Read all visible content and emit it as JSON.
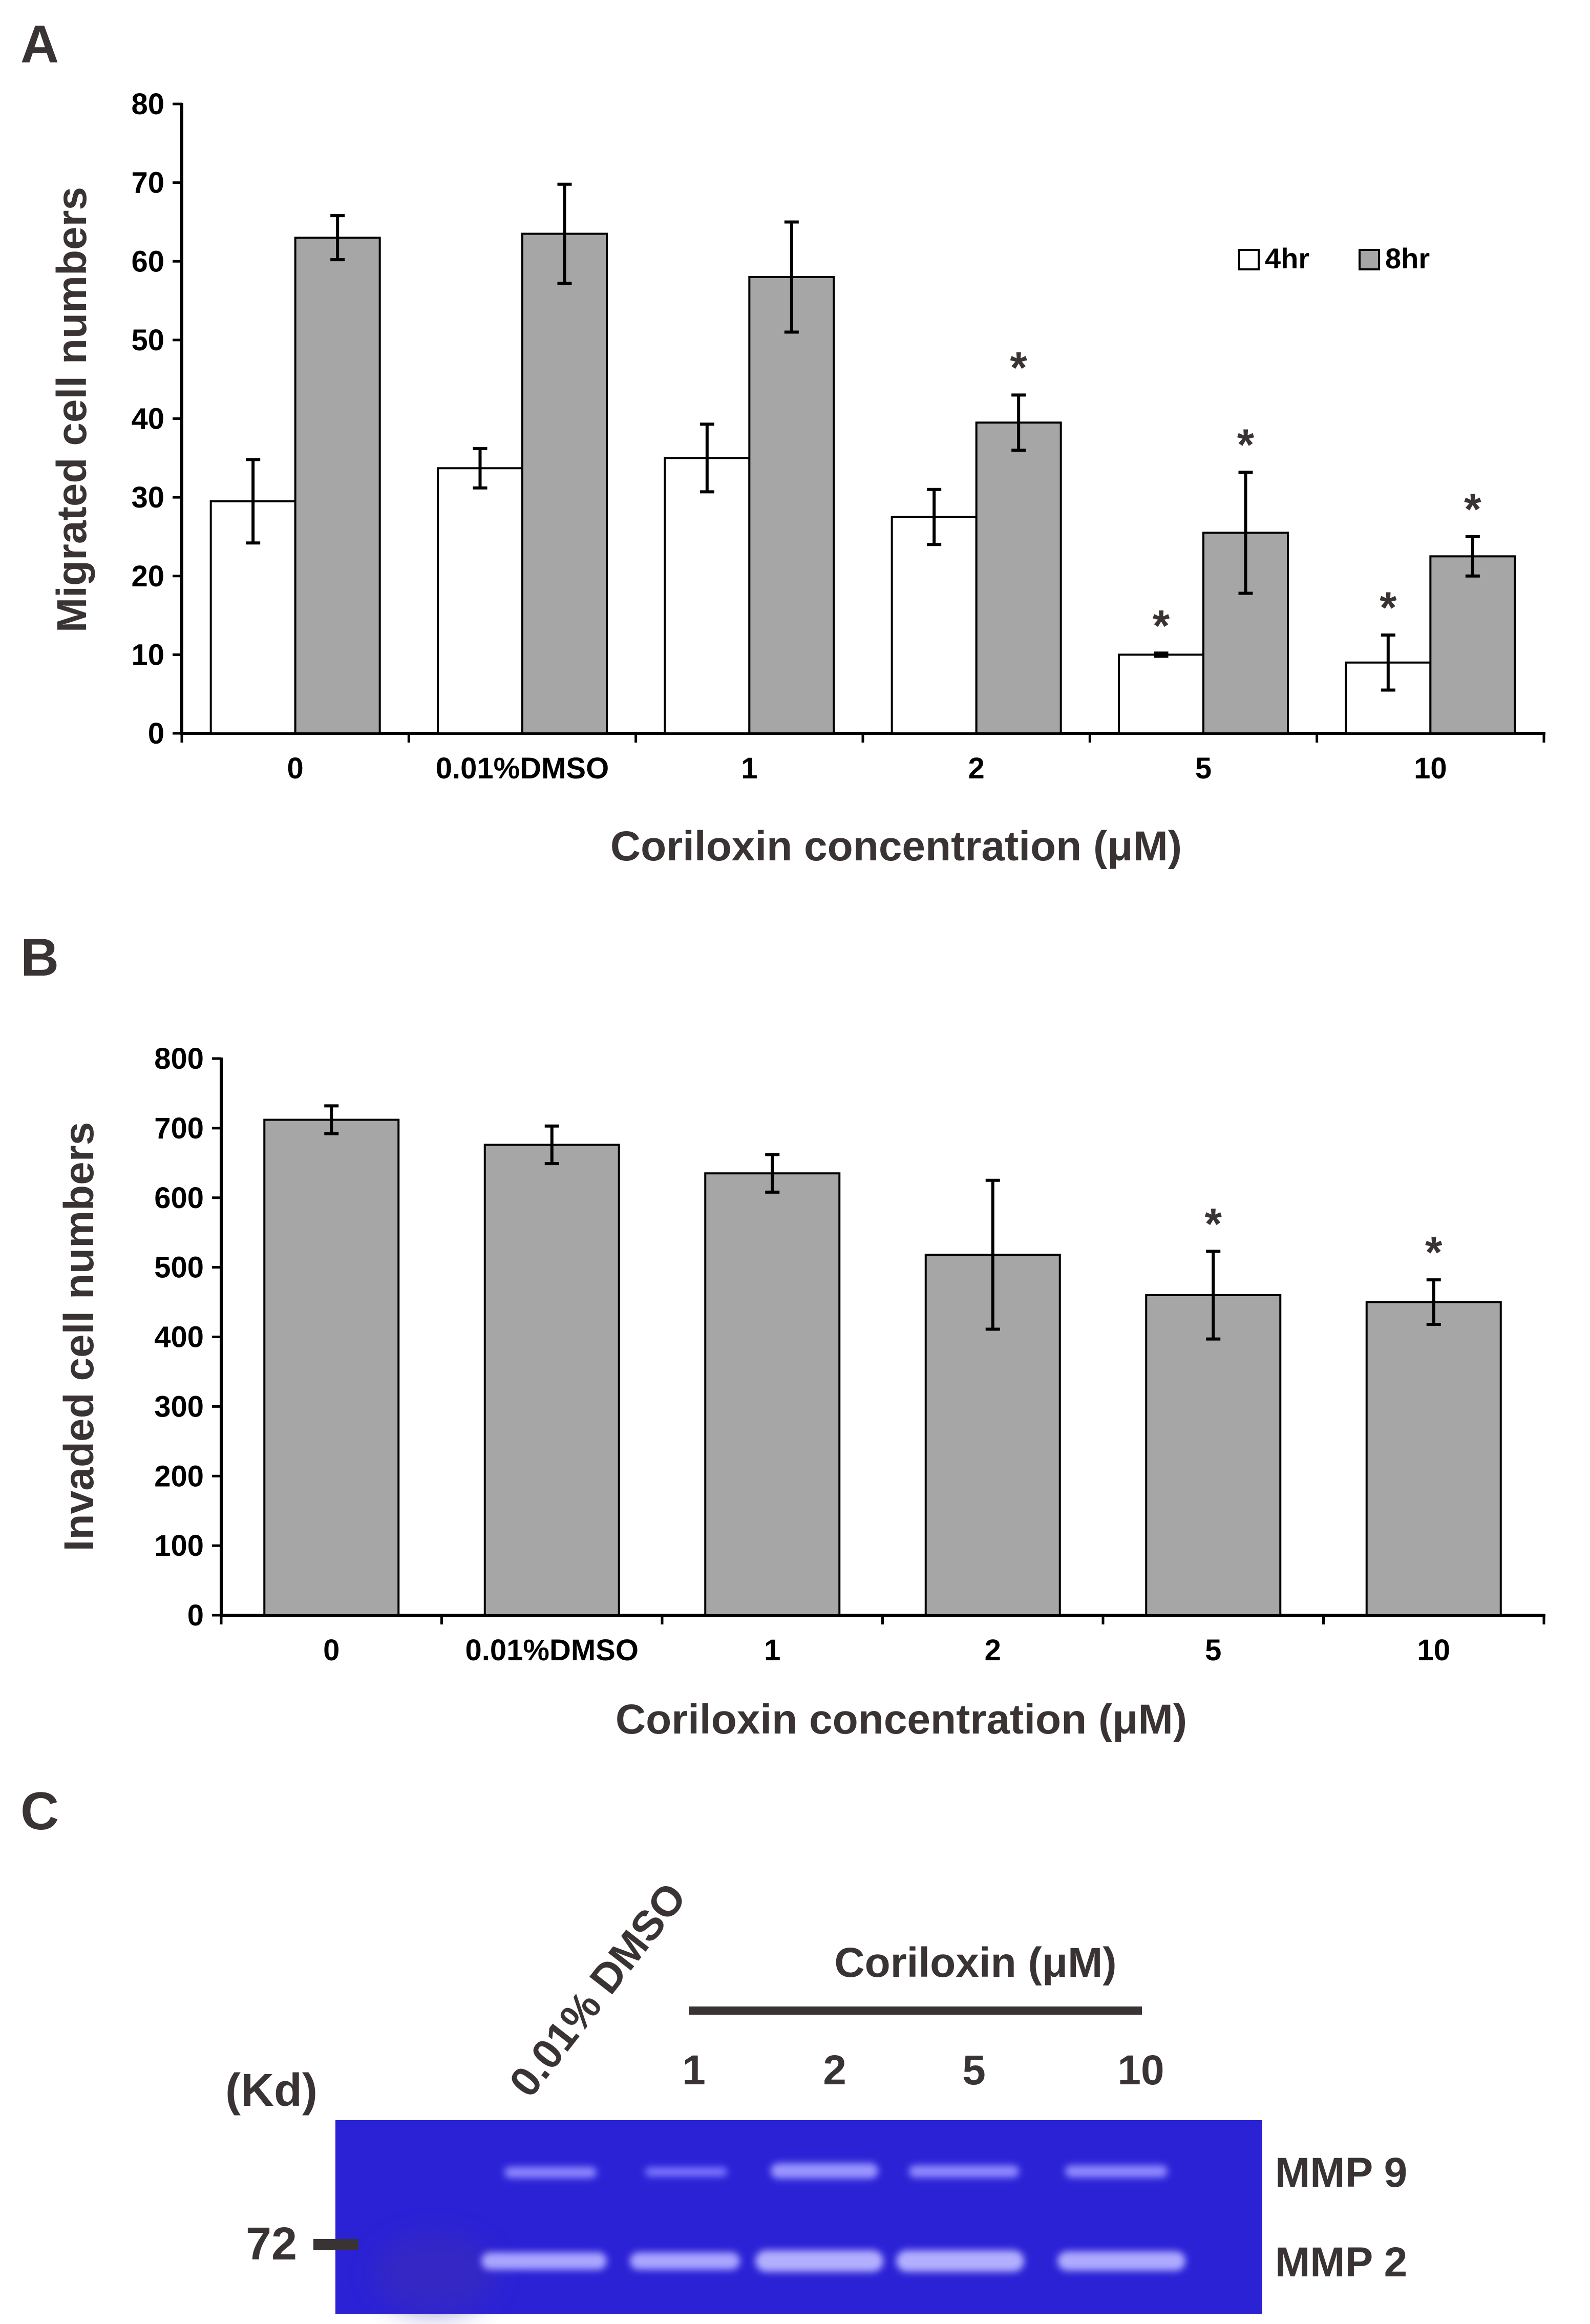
{
  "chart_data": [
    {
      "panel": "A",
      "type": "bar",
      "ylabel": "Migrated cell numbers",
      "xlabel": "Coriloxin concentration (μM)",
      "ylim": [
        0,
        80
      ],
      "yticks": [
        0,
        10,
        20,
        30,
        40,
        50,
        60,
        70,
        80
      ],
      "categories": [
        "0",
        "0.01%DMSO",
        "1",
        "2",
        "5",
        "10"
      ],
      "series": [
        {
          "name": "4hr",
          "color": "#ffffff",
          "values": [
            29.5,
            33.7,
            35.0,
            27.5,
            10.0,
            9.0
          ],
          "errors": [
            5.3,
            2.5,
            4.3,
            3.5,
            0.2,
            3.5
          ],
          "sig": [
            false,
            false,
            false,
            false,
            true,
            true
          ]
        },
        {
          "name": "8hr",
          "color": "#a6a6a6",
          "values": [
            63.0,
            63.5,
            58.0,
            39.5,
            25.5,
            22.5
          ],
          "errors": [
            2.8,
            6.3,
            7.0,
            3.5,
            7.7,
            2.5
          ],
          "sig": [
            false,
            false,
            false,
            true,
            true,
            true
          ]
        }
      ],
      "sig_marker": "*"
    },
    {
      "panel": "B",
      "type": "bar",
      "ylabel": "Invaded cell numbers",
      "xlabel": "Coriloxin concentration (μM)",
      "ylim": [
        0,
        800
      ],
      "yticks": [
        0,
        100,
        200,
        300,
        400,
        500,
        600,
        700,
        800
      ],
      "categories": [
        "0",
        "0.01%DMSO",
        "1",
        "2",
        "5",
        "10"
      ],
      "series": [
        {
          "name": "Invaded",
          "color": "#a6a6a6",
          "values": [
            712,
            676,
            635,
            518,
            460,
            450
          ],
          "errors": [
            20,
            27,
            27,
            107,
            63,
            32
          ],
          "sig": [
            false,
            false,
            false,
            false,
            true,
            true
          ]
        }
      ],
      "sig_marker": "*"
    }
  ],
  "panels": {
    "a": {
      "letter": "A"
    },
    "b": {
      "letter": "B"
    },
    "c": {
      "letter": "C",
      "dmso_label": "0.01% DMSO",
      "group_label": "Coriloxin (μM)",
      "lanes": [
        "1",
        "2",
        "5",
        "10"
      ],
      "kd_label": "(Kd)",
      "marker": "72",
      "band_labels": [
        "MMP 9",
        "MMP 2"
      ],
      "gel_color": "#2b22d6"
    }
  },
  "colors": {
    "text": "#3a3333",
    "axis": "#000000",
    "bar_outline": "#000000"
  }
}
